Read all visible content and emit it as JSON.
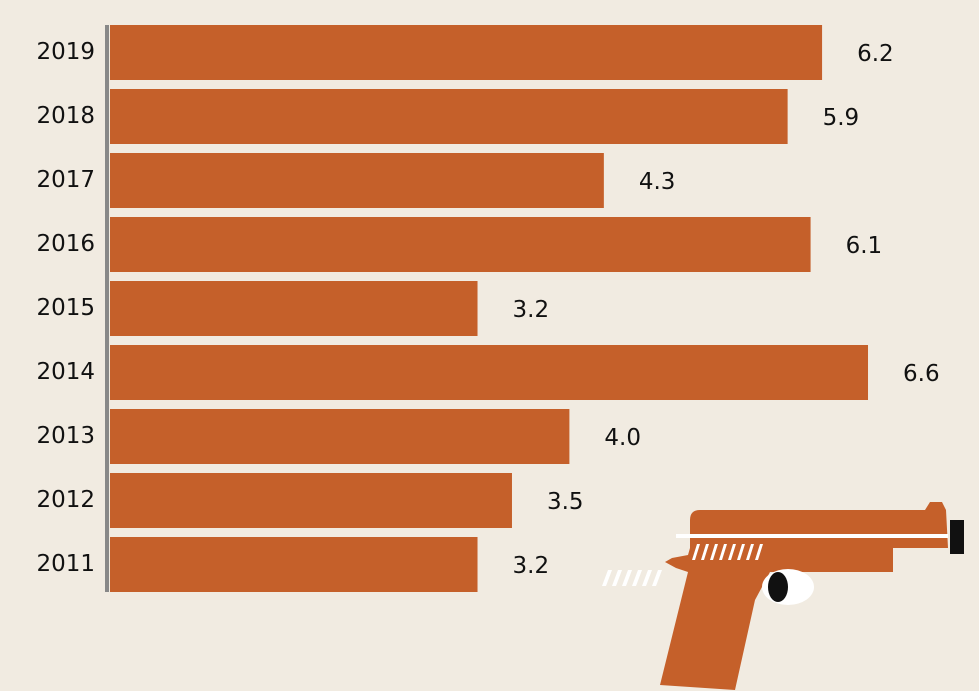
{
  "chart_data": {
    "type": "bar",
    "orientation": "horizontal",
    "categories": [
      "2019",
      "2018",
      "2017",
      "2016",
      "2015",
      "2014",
      "2013",
      "2012",
      "2011"
    ],
    "values": [
      6.2,
      5.9,
      4.3,
      6.1,
      3.2,
      6.6,
      4.0,
      3.5,
      3.2
    ],
    "value_labels": [
      "6.2",
      "5.9",
      "4.3",
      "6.1",
      "3.2",
      "6.6",
      "4.0",
      "3.5",
      "3.2"
    ],
    "color": "#c5602a"
  }
}
